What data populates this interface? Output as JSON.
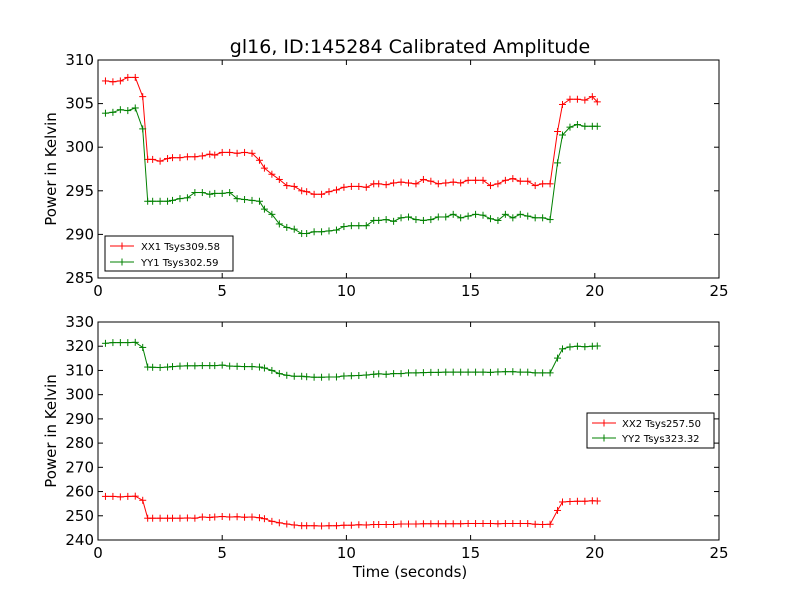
{
  "chart_data": [
    {
      "type": "line",
      "title": "gl16, ID:145284 Calibrated Amplitude",
      "xlabel": "",
      "ylabel": "Power in Kelvin",
      "xlim": [
        0,
        25
      ],
      "ylim": [
        285,
        310
      ],
      "xticks": [
        0,
        5,
        10,
        15,
        20,
        25
      ],
      "yticks": [
        285,
        290,
        295,
        300,
        305,
        310
      ],
      "grid": false,
      "legend_position": "lower-left",
      "x": [
        0.3,
        0.6,
        0.9,
        1.2,
        1.5,
        1.8,
        2.0,
        2.2,
        2.5,
        2.8,
        3.0,
        3.3,
        3.6,
        3.9,
        4.2,
        4.5,
        4.7,
        5.0,
        5.3,
        5.6,
        5.9,
        6.2,
        6.5,
        6.7,
        7.0,
        7.3,
        7.6,
        7.9,
        8.2,
        8.4,
        8.7,
        9.0,
        9.3,
        9.6,
        9.9,
        10.2,
        10.5,
        10.8,
        11.1,
        11.3,
        11.6,
        11.9,
        12.2,
        12.5,
        12.8,
        13.1,
        13.4,
        13.7,
        14.0,
        14.3,
        14.6,
        14.9,
        15.2,
        15.5,
        15.8,
        16.1,
        16.4,
        16.7,
        17.0,
        17.3,
        17.6,
        17.9,
        18.2,
        18.5,
        18.7,
        19.0,
        19.3,
        19.6,
        19.9,
        20.1
      ],
      "series": [
        {
          "name": "XX1 Tsys309.58",
          "color": "#ff0000",
          "values": [
            307.6,
            307.5,
            307.6,
            308.0,
            308.0,
            305.8,
            298.6,
            298.6,
            298.4,
            298.7,
            298.8,
            298.8,
            298.9,
            298.9,
            299.0,
            299.2,
            299.1,
            299.4,
            299.4,
            299.3,
            299.4,
            299.3,
            298.5,
            297.6,
            296.9,
            296.3,
            295.6,
            295.5,
            295.0,
            294.9,
            294.6,
            294.6,
            294.9,
            295.1,
            295.4,
            295.5,
            295.5,
            295.4,
            295.8,
            295.8,
            295.7,
            295.9,
            296.0,
            295.9,
            295.8,
            296.3,
            296.1,
            295.8,
            295.9,
            296.0,
            295.9,
            296.2,
            296.2,
            296.2,
            295.6,
            295.8,
            296.2,
            296.4,
            296.1,
            296.1,
            295.6,
            295.8,
            295.8,
            301.8,
            304.9,
            305.5,
            305.5,
            305.4,
            305.8,
            305.2
          ]
        },
        {
          "name": "YY1 Tsys302.59",
          "color": "#008000",
          "values": [
            303.9,
            304.0,
            304.3,
            304.2,
            304.5,
            302.1,
            293.8,
            293.8,
            293.8,
            293.8,
            293.9,
            294.1,
            294.2,
            294.8,
            294.8,
            294.6,
            294.7,
            294.7,
            294.8,
            294.1,
            294.0,
            293.9,
            293.8,
            292.9,
            292.3,
            291.2,
            290.8,
            290.6,
            290.1,
            290.1,
            290.3,
            290.3,
            290.4,
            290.5,
            290.9,
            291.0,
            291.0,
            291.0,
            291.6,
            291.6,
            291.7,
            291.5,
            291.9,
            292.0,
            291.7,
            291.6,
            291.7,
            292.0,
            292.0,
            292.3,
            291.9,
            292.1,
            292.3,
            292.2,
            291.8,
            291.6,
            292.3,
            291.9,
            292.3,
            292.1,
            291.9,
            291.9,
            291.7,
            298.2,
            301.4,
            302.3,
            302.6,
            302.4,
            302.4,
            302.4
          ]
        }
      ]
    },
    {
      "type": "line",
      "title": "",
      "xlabel": "Time (seconds)",
      "ylabel": "Power in Kelvin",
      "xlim": [
        0,
        25
      ],
      "ylim": [
        240,
        330
      ],
      "xticks": [
        0,
        5,
        10,
        15,
        20,
        25
      ],
      "yticks": [
        240,
        250,
        260,
        270,
        280,
        290,
        300,
        310,
        320,
        330
      ],
      "grid": false,
      "legend_position": "center-right",
      "x": [
        0.3,
        0.6,
        0.9,
        1.2,
        1.5,
        1.8,
        2.0,
        2.2,
        2.5,
        2.8,
        3.0,
        3.3,
        3.6,
        3.9,
        4.2,
        4.5,
        4.7,
        5.0,
        5.3,
        5.6,
        5.9,
        6.2,
        6.5,
        6.7,
        7.0,
        7.3,
        7.6,
        7.9,
        8.2,
        8.4,
        8.7,
        9.0,
        9.3,
        9.6,
        9.9,
        10.2,
        10.5,
        10.8,
        11.1,
        11.3,
        11.6,
        11.9,
        12.2,
        12.5,
        12.8,
        13.1,
        13.4,
        13.7,
        14.0,
        14.3,
        14.6,
        14.9,
        15.2,
        15.5,
        15.8,
        16.1,
        16.4,
        16.7,
        17.0,
        17.3,
        17.6,
        17.9,
        18.2,
        18.5,
        18.7,
        19.0,
        19.3,
        19.6,
        19.9,
        20.1
      ],
      "series": [
        {
          "name": "XX2 Tsys257.50",
          "color": "#ff0000",
          "values": [
            258.0,
            258.0,
            257.8,
            258.0,
            258.1,
            256.4,
            249.0,
            249.0,
            249.0,
            249.0,
            249.0,
            249.0,
            249.1,
            249.0,
            249.5,
            249.3,
            249.5,
            249.7,
            249.5,
            249.6,
            249.4,
            249.5,
            249.2,
            248.8,
            247.7,
            247.1,
            246.6,
            246.2,
            245.9,
            245.9,
            245.9,
            245.8,
            245.9,
            245.9,
            246.1,
            246.1,
            246.3,
            246.2,
            246.4,
            246.4,
            246.4,
            246.4,
            246.6,
            246.6,
            246.6,
            246.7,
            246.7,
            246.7,
            246.7,
            246.7,
            246.7,
            246.8,
            246.8,
            246.8,
            246.8,
            246.7,
            246.8,
            246.8,
            246.8,
            246.8,
            246.5,
            246.4,
            246.5,
            252.2,
            255.7,
            255.9,
            256.0,
            256.0,
            256.2,
            256.1
          ]
        },
        {
          "name": "YY2 Tsys323.32",
          "color": "#008000",
          "values": [
            321.2,
            321.5,
            321.5,
            321.5,
            321.6,
            319.5,
            311.4,
            311.3,
            311.2,
            311.4,
            311.6,
            311.8,
            311.9,
            311.9,
            312.0,
            312.0,
            312.0,
            312.2,
            311.8,
            311.7,
            311.6,
            311.6,
            311.4,
            311.0,
            310.0,
            308.7,
            308.0,
            307.6,
            307.6,
            307.4,
            307.2,
            307.2,
            307.3,
            307.3,
            307.7,
            307.8,
            307.9,
            308.1,
            308.4,
            308.6,
            308.4,
            308.7,
            308.7,
            309.0,
            309.0,
            309.1,
            309.2,
            309.2,
            309.3,
            309.3,
            309.3,
            309.3,
            309.3,
            309.3,
            309.2,
            309.4,
            309.5,
            309.5,
            309.3,
            309.3,
            309.0,
            309.0,
            309.0,
            315.1,
            318.9,
            319.7,
            320.0,
            319.8,
            320.0,
            320.1
          ]
        }
      ]
    }
  ]
}
